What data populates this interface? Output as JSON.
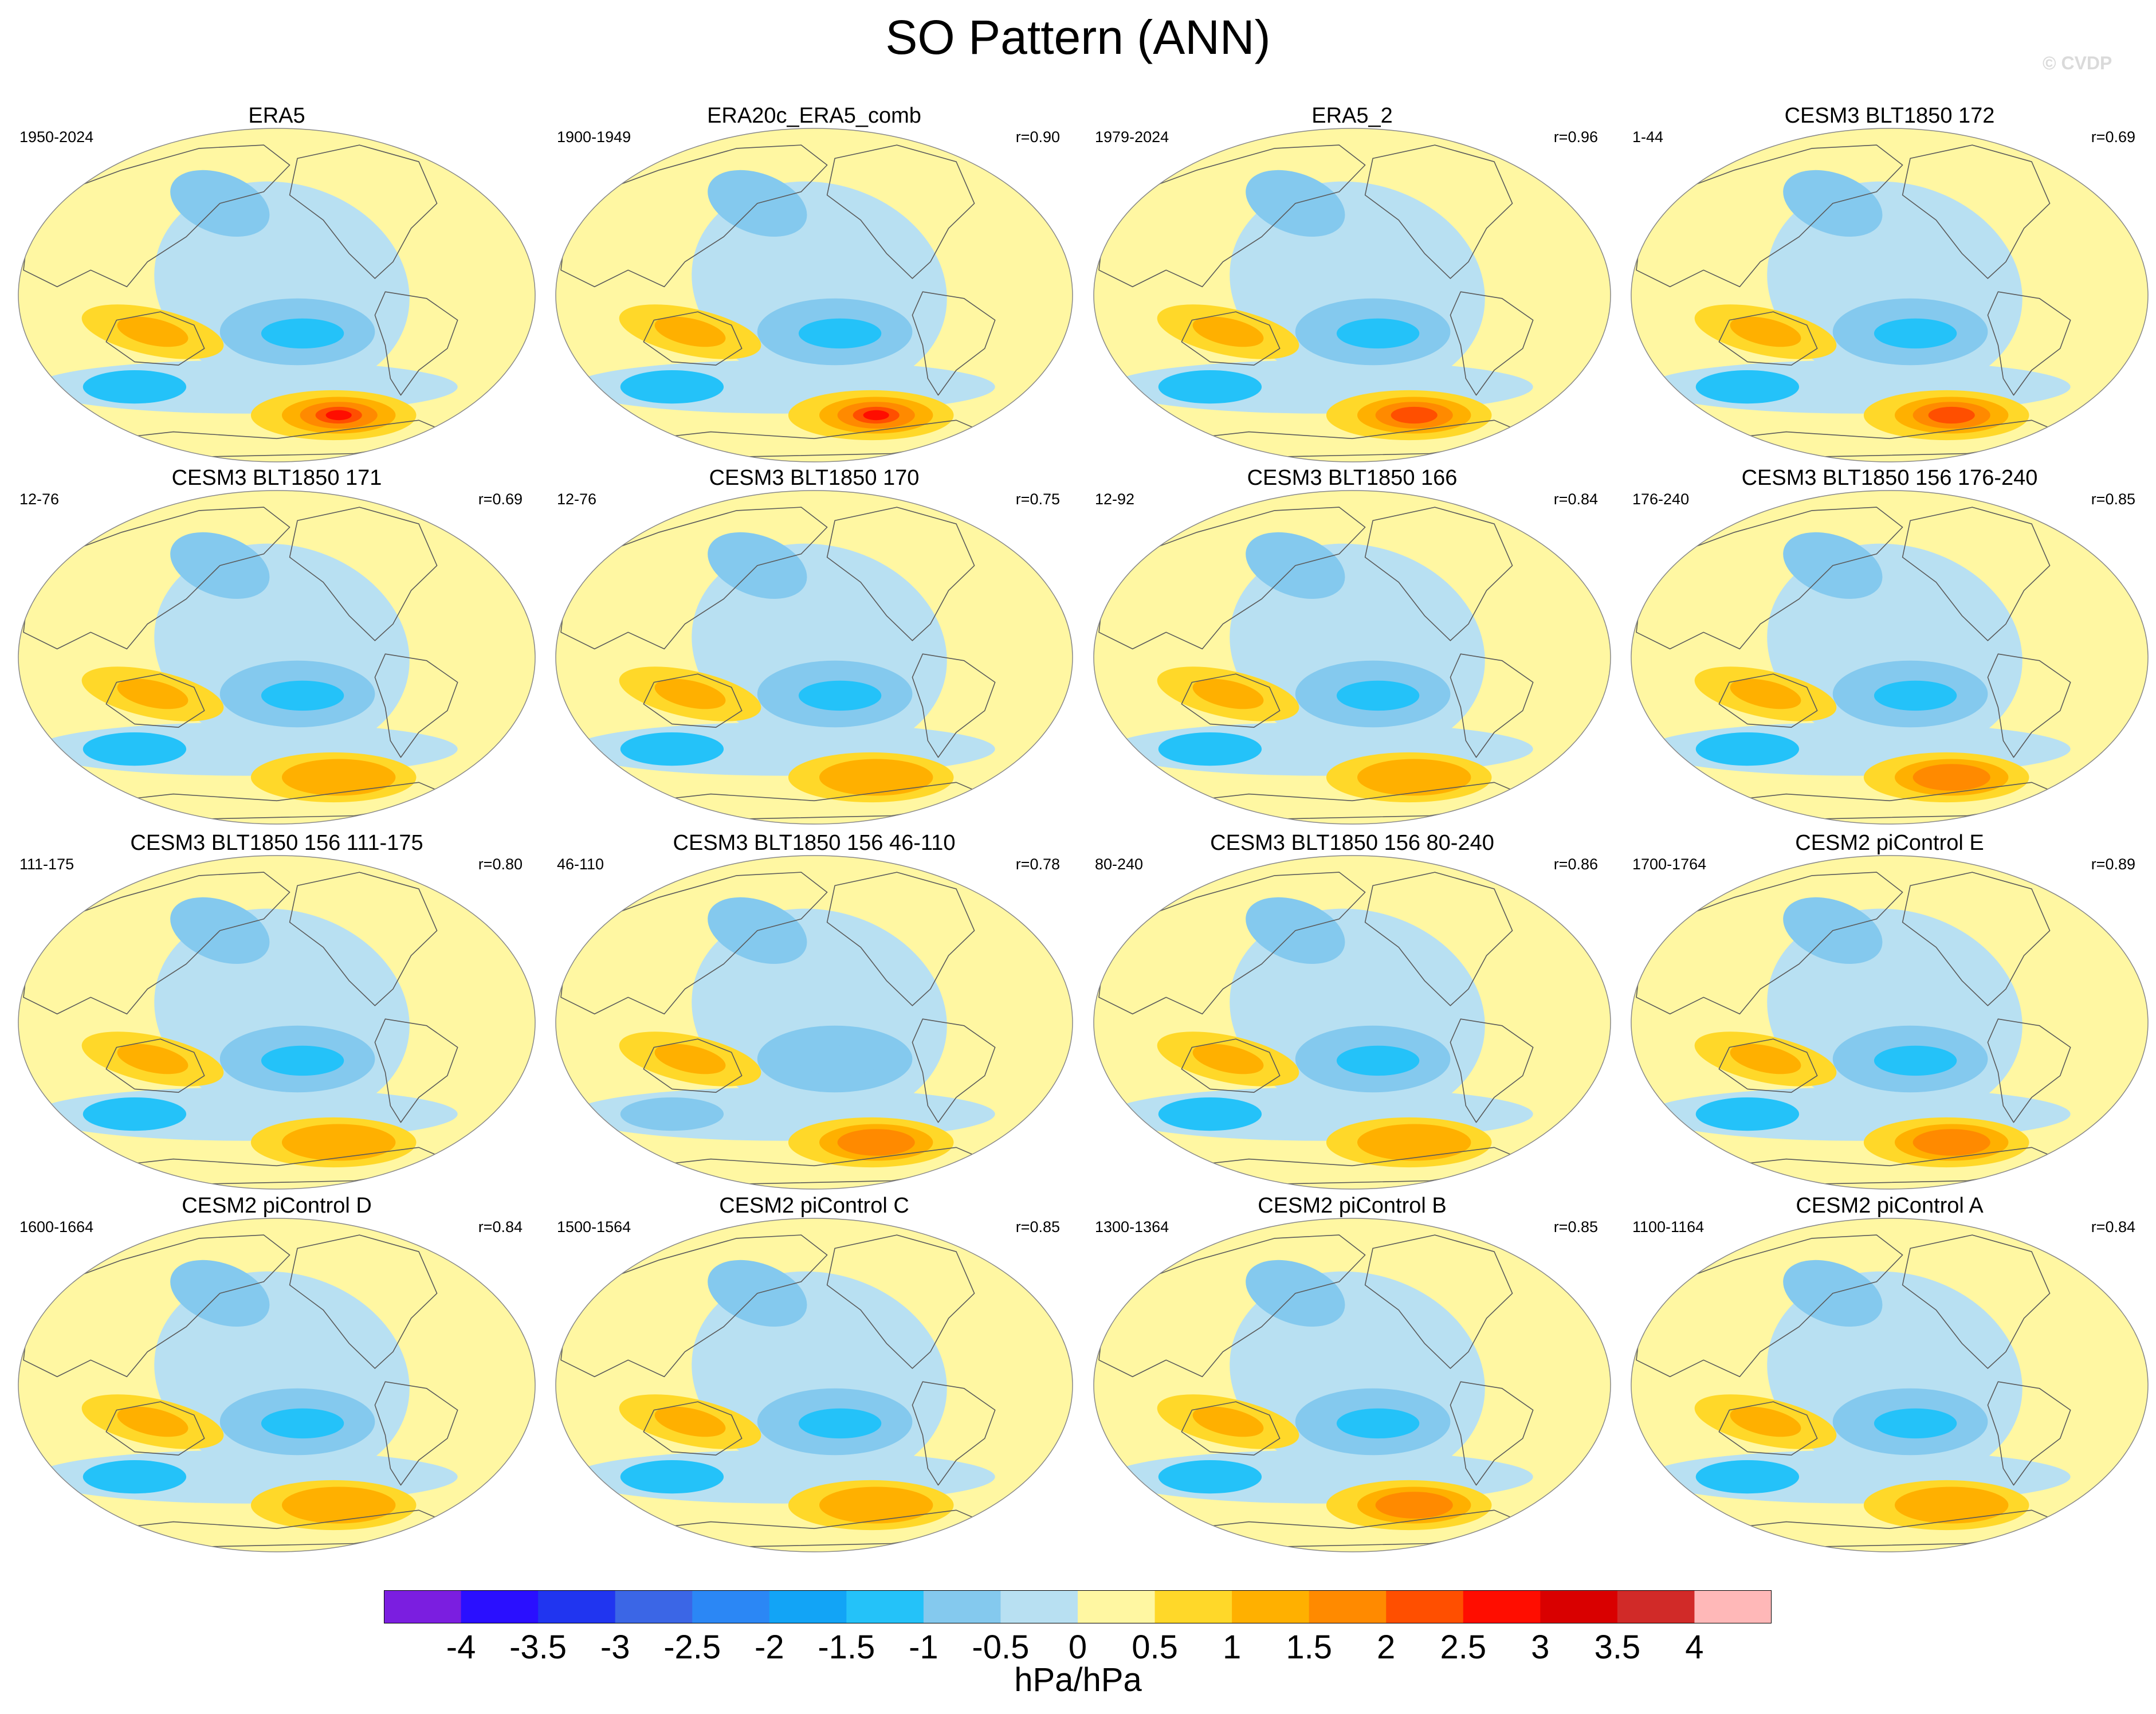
{
  "title": "SO Pattern (ANN)",
  "watermark": "© CVDP",
  "units": "hPa/hPa",
  "colors": {
    "levels": [
      "#7b1ee0",
      "#2a0fff",
      "#2035f0",
      "#3b66e6",
      "#2b87f5",
      "#12a4f6",
      "#24c2f9",
      "#84c9ee",
      "#b8e0f2",
      "#fff7a2",
      "#ffd829",
      "#ffb000",
      "#ff8a00",
      "#ff4f00",
      "#ff0d00",
      "#d90000",
      "#d12a28",
      "#ffb8b8"
    ],
    "land_outline": "#5a5a5a",
    "map_border": "#888888"
  },
  "chart_data": {
    "type": "heatmap",
    "title": "SO Pattern (ANN)",
    "colorbar": {
      "label": "hPa/hPa",
      "ticks": [
        "-4",
        "-3.5",
        "-3",
        "-2.5",
        "-2",
        "-1.5",
        "-1",
        "-0.5",
        "0",
        "0.5",
        "1",
        "1.5",
        "2",
        "2.5",
        "3",
        "3.5",
        "4"
      ]
    },
    "panels": [
      {
        "name": "ERA5",
        "years": "1950-2024",
        "corr": "",
        "warm_max": 3.0,
        "cold_min": -1.5
      },
      {
        "name": "ERA20c_ERA5_comb",
        "years": "1900-1949",
        "corr": "r=0.90",
        "warm_max": 3.0,
        "cold_min": -1.5
      },
      {
        "name": "ERA5_2",
        "years": "1979-2024",
        "corr": "r=0.96",
        "warm_max": 2.5,
        "cold_min": -1.5
      },
      {
        "name": "CESM3 BLT1850 172",
        "years": "1-44",
        "corr": "r=0.69",
        "warm_max": 2.5,
        "cold_min": -2.0
      },
      {
        "name": "CESM3 BLT1850 171",
        "years": "12-76",
        "corr": "r=0.69",
        "warm_max": 1.5,
        "cold_min": -1.5
      },
      {
        "name": "CESM3 BLT1850 170",
        "years": "12-76",
        "corr": "r=0.75",
        "warm_max": 1.5,
        "cold_min": -1.5
      },
      {
        "name": "CESM3 BLT1850 166",
        "years": "12-92",
        "corr": "r=0.84",
        "warm_max": 1.5,
        "cold_min": -1.5
      },
      {
        "name": "CESM3 BLT1850 156 176-240",
        "years": "176-240",
        "corr": "r=0.85",
        "warm_max": 2.0,
        "cold_min": -1.5
      },
      {
        "name": "CESM3 BLT1850 156 111-175",
        "years": "111-175",
        "corr": "r=0.80",
        "warm_max": 1.5,
        "cold_min": -1.5
      },
      {
        "name": "CESM3 BLT1850 156 46-110",
        "years": "46-110",
        "corr": "r=0.78",
        "warm_max": 2.0,
        "cold_min": -1.0
      },
      {
        "name": "CESM3 BLT1850 156 80-240",
        "years": "80-240",
        "corr": "r=0.86",
        "warm_max": 1.5,
        "cold_min": -1.5
      },
      {
        "name": "CESM2 piControl E",
        "years": "1700-1764",
        "corr": "r=0.89",
        "warm_max": 2.0,
        "cold_min": -1.5
      },
      {
        "name": "CESM2 piControl D",
        "years": "1600-1664",
        "corr": "r=0.84",
        "warm_max": 1.5,
        "cold_min": -1.5
      },
      {
        "name": "CESM2 piControl C",
        "years": "1500-1564",
        "corr": "r=0.85",
        "warm_max": 1.5,
        "cold_min": -1.5
      },
      {
        "name": "CESM2 piControl B",
        "years": "1300-1364",
        "corr": "r=0.85",
        "warm_max": 2.0,
        "cold_min": -1.5
      },
      {
        "name": "CESM2 piControl A",
        "years": "1100-1164",
        "corr": "r=0.84",
        "warm_max": 1.5,
        "cold_min": -1.5
      }
    ]
  }
}
